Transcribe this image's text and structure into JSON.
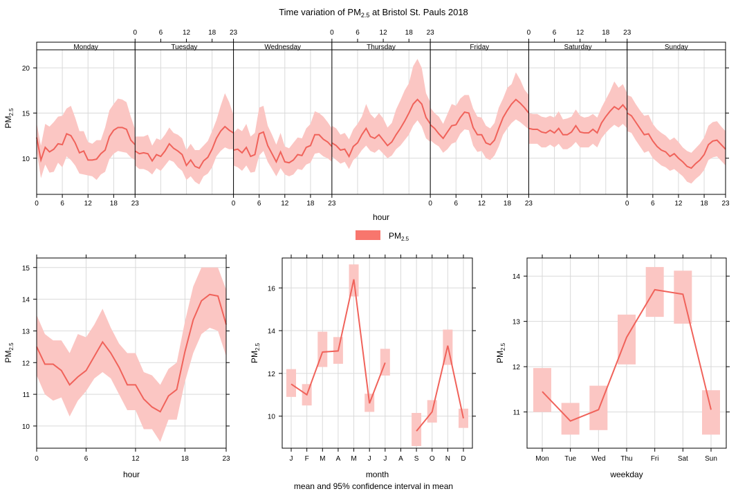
{
  "title": "Time variation of PM",
  "title_sub": "2.5",
  "title_suffix": " at Bristol St. Pauls 2018",
  "legend": {
    "label": "PM",
    "sub": "2.5"
  },
  "footnote": "mean and 95% confidence interval in mean",
  "colors": {
    "line": "#F0625A",
    "band": "#FBC6C3",
    "grid": "#D9D9D9"
  },
  "chart_data": [
    {
      "type": "line",
      "id": "weekly_hourly",
      "xlabel": "hour",
      "ylabel": "PM",
      "ylabel_sub": "2.5",
      "ylim": [
        6,
        22
      ],
      "yticks": [
        10,
        15,
        20
      ],
      "panels": [
        "Monday",
        "Tuesday",
        "Wednesday",
        "Thursday",
        "Friday",
        "Saturday",
        "Sunday"
      ],
      "panel_xticks": [
        0,
        6,
        12,
        18,
        23
      ],
      "series": [
        {
          "name": "PM2.5",
          "days": [
            {
              "mean": [
                12.3,
                9.8,
                11.2,
                10.7,
                11.0,
                11.6,
                11.5,
                12.7,
                12.5,
                11.7,
                10.6,
                10.8,
                9.8,
                9.8,
                9.9,
                10.5,
                10.9,
                12.4,
                13.1,
                13.4,
                13.4,
                13.2,
                12.0,
                11.5
              ],
              "lo": [
                10.8,
                7.8,
                9.3,
                8.4,
                8.5,
                9.5,
                9.0,
                10.2,
                9.8,
                9.2,
                8.3,
                8.2,
                8.1,
                8.0,
                7.6,
                8.2,
                8.5,
                9.9,
                10.5,
                10.8,
                10.7,
                10.6,
                10.1,
                9.8
              ],
              "hi": [
                13.9,
                11.4,
                13.8,
                13.5,
                14.0,
                14.6,
                14.7,
                15.5,
                15.8,
                14.5,
                13.0,
                13.0,
                11.8,
                11.6,
                12.0,
                12.0,
                13.4,
                15.3,
                16.0,
                16.6,
                16.5,
                16.2,
                14.6,
                13.2
              ]
            },
            {
              "mean": [
                10.8,
                10.5,
                10.6,
                10.5,
                9.7,
                10.4,
                10.2,
                10.8,
                11.6,
                11.1,
                10.8,
                10.4,
                9.2,
                9.8,
                9.1,
                8.9,
                9.7,
                10.1,
                11.0,
                12.2,
                13.0,
                13.5,
                13.1,
                12.8
              ],
              "lo": [
                9.2,
                8.8,
                8.8,
                8.6,
                8.2,
                8.9,
                8.6,
                9.2,
                9.8,
                9.6,
                9.0,
                8.6,
                7.6,
                8.0,
                7.4,
                7.1,
                8.0,
                8.3,
                9.0,
                10.2,
                10.8,
                11.2,
                11.0,
                11.0
              ],
              "hi": [
                12.4,
                12.4,
                12.4,
                12.6,
                11.4,
                12.2,
                12.0,
                12.6,
                13.4,
                12.8,
                12.6,
                12.2,
                10.9,
                11.6,
                10.9,
                10.9,
                11.4,
                11.9,
                13.0,
                14.2,
                15.8,
                17.2,
                16.2,
                14.8
              ]
            },
            {
              "mean": [
                10.9,
                11.0,
                10.6,
                11.2,
                10.2,
                10.4,
                12.7,
                12.9,
                11.4,
                10.5,
                9.6,
                10.7,
                9.6,
                9.5,
                9.8,
                10.4,
                10.3,
                11.2,
                11.4,
                12.6,
                12.6,
                12.1,
                11.8,
                11.3
              ],
              "lo": [
                9.2,
                9.0,
                8.6,
                9.2,
                8.4,
                8.5,
                10.3,
                10.8,
                9.6,
                8.8,
                8.0,
                8.9,
                8.2,
                8.0,
                8.2,
                8.8,
                8.7,
                9.3,
                9.5,
                10.5,
                10.6,
                10.2,
                10.0,
                9.6
              ],
              "hi": [
                12.8,
                13.3,
                13.0,
                13.8,
                12.4,
                12.8,
                15.6,
                15.8,
                13.6,
                12.6,
                11.5,
                12.8,
                11.3,
                11.1,
                11.7,
                12.3,
                12.2,
                13.3,
                13.8,
                15.2,
                15.0,
                14.6,
                14.0,
                13.3
              ]
            },
            {
              "mean": [
                11.7,
                11.4,
                10.9,
                11.0,
                10.2,
                11.3,
                11.7,
                12.6,
                13.3,
                12.4,
                12.2,
                12.6,
                12.0,
                11.4,
                11.8,
                12.6,
                13.3,
                14.1,
                15.0,
                16.0,
                16.5,
                16.0,
                14.5,
                13.8
              ],
              "lo": [
                10.2,
                9.8,
                9.4,
                9.6,
                8.8,
                9.8,
                10.2,
                10.9,
                11.4,
                10.8,
                10.6,
                11.0,
                10.5,
                10.0,
                10.3,
                11.0,
                11.4,
                12.0,
                12.6,
                13.6,
                14.2,
                13.5,
                12.2,
                11.8
              ],
              "hi": [
                13.6,
                13.3,
                12.6,
                12.8,
                12.1,
                13.2,
                13.8,
                14.6,
                16.0,
                14.9,
                14.4,
                15.0,
                14.4,
                13.4,
                13.9,
                15.4,
                16.4,
                17.5,
                18.3,
                20.2,
                21.0,
                20.0,
                17.2,
                16.2
              ]
            },
            {
              "mean": [
                13.7,
                13.3,
                12.7,
                12.2,
                12.9,
                13.6,
                13.7,
                14.5,
                15.1,
                15.0,
                13.4,
                12.6,
                12.6,
                11.7,
                11.5,
                12.0,
                13.3,
                14.5,
                15.3,
                16.0,
                16.5,
                16.1,
                15.6,
                15.0
              ],
              "lo": [
                12.0,
                11.6,
                11.3,
                10.6,
                11.0,
                11.6,
                11.8,
                12.7,
                13.2,
                13.1,
                11.4,
                10.7,
                10.8,
                10.0,
                9.8,
                10.3,
                11.3,
                12.6,
                13.3,
                13.9,
                14.3,
                14.0,
                13.6,
                13.2
              ],
              "hi": [
                15.6,
                15.0,
                14.6,
                13.8,
                14.9,
                16.0,
                15.8,
                16.6,
                17.0,
                17.0,
                15.5,
                14.6,
                14.5,
                13.6,
                13.3,
                13.9,
                15.6,
                16.6,
                17.8,
                18.2,
                19.5,
                18.7,
                17.6,
                17.0
              ]
            },
            {
              "mean": [
                13.3,
                13.2,
                13.2,
                12.9,
                12.8,
                13.1,
                12.8,
                13.3,
                12.6,
                12.6,
                12.9,
                13.6,
                12.9,
                12.8,
                12.8,
                13.2,
                12.8,
                13.9,
                14.6,
                15.2,
                15.7,
                15.4,
                15.9,
                15.3
              ],
              "lo": [
                11.6,
                11.6,
                11.6,
                11.2,
                11.2,
                11.5,
                11.2,
                11.6,
                11.0,
                11.0,
                11.3,
                11.8,
                11.2,
                11.2,
                11.2,
                11.6,
                11.2,
                12.2,
                12.8,
                13.3,
                13.7,
                13.4,
                13.8,
                13.3
              ],
              "hi": [
                15.0,
                14.9,
                14.9,
                14.6,
                14.5,
                14.7,
                14.5,
                15.2,
                14.3,
                14.4,
                14.6,
                15.4,
                14.7,
                14.5,
                14.6,
                14.9,
                14.5,
                15.6,
                16.5,
                17.4,
                18.5,
                17.8,
                18.2,
                17.2
              ]
            },
            {
              "mean": [
                15.0,
                14.7,
                14.0,
                13.3,
                12.6,
                12.7,
                11.9,
                11.3,
                10.9,
                10.7,
                10.2,
                10.5,
                10.0,
                9.6,
                9.1,
                8.9,
                9.4,
                9.8,
                10.4,
                11.5,
                11.9,
                12.0,
                11.5,
                11.0
              ],
              "lo": [
                13.0,
                12.8,
                12.0,
                11.3,
                10.6,
                10.8,
                10.0,
                9.6,
                9.2,
                9.0,
                8.6,
                8.8,
                8.4,
                8.0,
                7.4,
                7.2,
                7.7,
                8.1,
                8.7,
                9.8,
                10.1,
                10.2,
                9.7,
                9.2
              ],
              "hi": [
                17.0,
                16.8,
                16.0,
                15.3,
                14.7,
                14.8,
                13.8,
                13.2,
                12.8,
                12.5,
                12.0,
                12.3,
                11.8,
                11.2,
                10.8,
                10.6,
                11.1,
                11.6,
                12.3,
                13.6,
                14.0,
                14.1,
                13.5,
                13.0
              ]
            }
          ]
        }
      ]
    },
    {
      "type": "line",
      "id": "hour",
      "xlabel": "hour",
      "ylabel": "PM",
      "ylabel_sub": "2.5",
      "xlim": [
        0,
        23
      ],
      "ylim": [
        9.3,
        15.3
      ],
      "xticks": [
        0,
        6,
        12,
        18,
        23
      ],
      "yticks": [
        10,
        11,
        12,
        13,
        14,
        15
      ],
      "series": [
        {
          "name": "PM2.5",
          "x": [
            0,
            1,
            2,
            3,
            4,
            5,
            6,
            7,
            8,
            9,
            10,
            11,
            12,
            13,
            14,
            15,
            16,
            17,
            18,
            19,
            20,
            21,
            22,
            23
          ],
          "mean": [
            12.5,
            11.95,
            11.95,
            11.75,
            11.3,
            11.55,
            11.75,
            12.2,
            12.65,
            12.3,
            11.85,
            11.3,
            11.3,
            10.85,
            10.6,
            10.45,
            10.95,
            11.15,
            12.35,
            13.35,
            13.95,
            14.15,
            14.1,
            13.2
          ],
          "lo": [
            11.6,
            11.0,
            10.8,
            10.9,
            10.3,
            10.8,
            11.1,
            11.5,
            11.7,
            11.5,
            11.0,
            10.5,
            10.5,
            9.9,
            9.9,
            9.5,
            10.2,
            10.2,
            11.4,
            12.3,
            12.9,
            13.1,
            13.0,
            12.2
          ],
          "hi": [
            13.5,
            12.9,
            12.7,
            12.7,
            12.3,
            12.9,
            12.8,
            13.2,
            13.7,
            13.1,
            12.6,
            12.3,
            12.3,
            11.7,
            11.6,
            11.3,
            11.8,
            12.0,
            13.3,
            14.4,
            15.0,
            15.0,
            15.0,
            14.3
          ]
        }
      ]
    },
    {
      "type": "line",
      "id": "month",
      "xlabel": "month",
      "ylabel": "PM",
      "ylabel_sub": "2.5",
      "ylim": [
        8.5,
        17.4
      ],
      "yticks": [
        10,
        12,
        14,
        16
      ],
      "categories": [
        "J",
        "F",
        "M",
        "A",
        "M",
        "J",
        "J",
        "A",
        "S",
        "O",
        "N",
        "D"
      ],
      "series": [
        {
          "name": "PM2.5",
          "mean": [
            11.5,
            11.0,
            13.0,
            13.05,
            16.4,
            10.6,
            12.5,
            null,
            9.3,
            10.2,
            13.3,
            9.9
          ],
          "lo": [
            10.9,
            10.5,
            12.3,
            12.45,
            15.6,
            10.2,
            11.9,
            null,
            8.6,
            9.7,
            12.4,
            9.45
          ],
          "hi": [
            12.2,
            11.5,
            13.95,
            13.7,
            17.1,
            11.05,
            13.15,
            null,
            10.15,
            10.75,
            14.05,
            10.35
          ]
        }
      ]
    },
    {
      "type": "line",
      "id": "weekday",
      "xlabel": "weekday",
      "ylabel": "PM",
      "ylabel_sub": "2.5",
      "ylim": [
        10.2,
        14.4
      ],
      "yticks": [
        11,
        12,
        13,
        14
      ],
      "categories": [
        "Mon",
        "Tue",
        "Wed",
        "Thu",
        "Fri",
        "Sat",
        "Sun"
      ],
      "series": [
        {
          "name": "PM2.5",
          "mean": [
            11.45,
            10.8,
            11.05,
            12.65,
            13.7,
            13.6,
            11.05
          ],
          "lo": [
            11.0,
            10.5,
            10.6,
            12.05,
            13.1,
            12.95,
            10.5
          ],
          "hi": [
            11.97,
            11.2,
            11.58,
            13.15,
            14.2,
            14.12,
            11.48
          ]
        }
      ]
    }
  ]
}
